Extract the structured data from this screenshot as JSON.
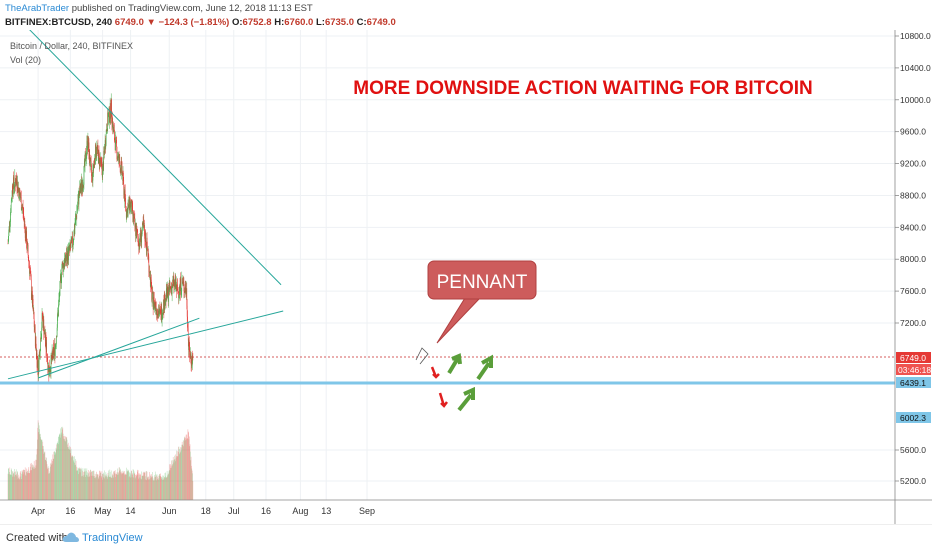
{
  "header": {
    "author": "TheArabTrader",
    "published": "published on TradingView.com, June 12, 2018 11:13 EST",
    "symbol": "BITFINEX:BTCUSD, 240",
    "last": "6749.0",
    "change_arrow": "▼",
    "change": "−124.3 (−1.81%)",
    "o_label": "O:",
    "o_val": "6752.8",
    "h_label": "H:",
    "h_val": "6760.0",
    "l_label": "L:",
    "l_val": "6735.0",
    "c_label": "C:",
    "c_val": "6749.0"
  },
  "legend": {
    "series_title": "Bitcoin / Dollar, 240, BITFINEX",
    "volume_title": "Vol (20)"
  },
  "annotation": {
    "headline": "MORE DOWNSIDE ACTION WAITING FOR BITCOIN",
    "callout": "PENNANT"
  },
  "price_tags": {
    "current": "6749.0",
    "countdown": "03:46:18",
    "support1": "6439.1",
    "support2": "6002.3"
  },
  "footer": {
    "created_with": "Created with",
    "brand": "TradingView"
  },
  "colors": {
    "up": "#4caf50",
    "down": "#e53935",
    "trend": "#26a69a",
    "support": "#7fc6e8",
    "headline": "#e01010",
    "callout_bg": "#cd5c5c",
    "arrow_green": "#5a9e3a",
    "arrow_red": "#e02020"
  },
  "chart_data": {
    "type": "line",
    "ylabels": [
      "10800.0",
      "10400.0",
      "10000.0",
      "9600.0",
      "9200.0",
      "8800.0",
      "8400.0",
      "8000.0",
      "7600.0",
      "7200.0",
      "5600.0",
      "5200.0"
    ],
    "xticks": [
      "Apr",
      "16",
      "May",
      "14",
      "Jun",
      "18",
      "Jul",
      "16",
      "Aug",
      "13",
      "Sep"
    ],
    "price_path": [
      [
        "03-18",
        8200
      ],
      [
        "03-20",
        8900
      ],
      [
        "03-22",
        9000
      ],
      [
        "03-25",
        8600
      ],
      [
        "03-28",
        7900
      ],
      [
        "03-31",
        6900
      ],
      [
        "04-01",
        6600
      ],
      [
        "04-03",
        7300
      ],
      [
        "04-06",
        6600
      ],
      [
        "04-09",
        6900
      ],
      [
        "04-12",
        7900
      ],
      [
        "04-14",
        8000
      ],
      [
        "04-17",
        8200
      ],
      [
        "04-20",
        8800
      ],
      [
        "04-22",
        9000
      ],
      [
        "04-24",
        9500
      ],
      [
        "04-26",
        9000
      ],
      [
        "04-28",
        9400
      ],
      [
        "05-01",
        9100
      ],
      [
        "05-03",
        9700
      ],
      [
        "05-05",
        9900
      ],
      [
        "05-06",
        9600
      ],
      [
        "05-08",
        9300
      ],
      [
        "05-10",
        9100
      ],
      [
        "05-12",
        8600
      ],
      [
        "05-14",
        8700
      ],
      [
        "05-16",
        8400
      ],
      [
        "05-18",
        8200
      ],
      [
        "05-20",
        8400
      ],
      [
        "05-22",
        8100
      ],
      [
        "05-24",
        7500
      ],
      [
        "05-26",
        7400
      ],
      [
        "05-28",
        7300
      ],
      [
        "05-30",
        7500
      ],
      [
        "06-01",
        7600
      ],
      [
        "06-03",
        7700
      ],
      [
        "06-05",
        7600
      ],
      [
        "06-07",
        7700
      ],
      [
        "06-09",
        7600
      ],
      [
        "06-10",
        6900
      ],
      [
        "06-11",
        6750
      ],
      [
        "06-12",
        6749
      ]
    ],
    "volume_path": [
      [
        "03-18",
        5300
      ],
      [
        "03-24",
        5250
      ],
      [
        "03-31",
        5400
      ],
      [
        "04-01",
        5900
      ],
      [
        "04-06",
        5300
      ],
      [
        "04-12",
        5850
      ],
      [
        "04-20",
        5300
      ],
      [
        "05-01",
        5250
      ],
      [
        "05-10",
        5300
      ],
      [
        "05-20",
        5250
      ],
      [
        "05-30",
        5230
      ],
      [
        "06-10",
        5800
      ],
      [
        "06-12",
        5200
      ]
    ],
    "annotation_lines": [
      {
        "kind": "trendline",
        "from": [
          "03-28",
          10880
        ],
        "to": [
          "07-23",
          7680
        ]
      },
      {
        "kind": "trendline",
        "from": [
          "03-18",
          6500
        ],
        "to": [
          "07-24",
          7350
        ]
      },
      {
        "kind": "trendline",
        "from": [
          "04-01",
          6510
        ],
        "to": [
          "06-15",
          7260
        ]
      },
      {
        "kind": "support",
        "price": 6439.1
      },
      {
        "kind": "support",
        "price": 6002.3
      }
    ]
  }
}
